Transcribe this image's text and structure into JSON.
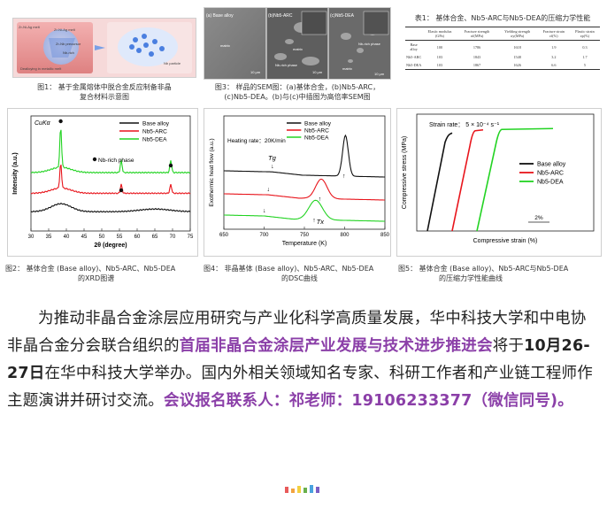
{
  "fig1": {
    "caption_line1": "图1： 基于金属熔体中脱合金反应制备非晶",
    "caption_line2": "复合材料示意图",
    "left_labels": [
      "Zr-Ni-Ag melt",
      "Zr-Ni-Ag melt",
      "Zr-Nb precursor",
      "Nb-rich",
      "Dealloying in metallic melt"
    ],
    "right_labels": [
      "Nb particle"
    ]
  },
  "fig3": {
    "caption_line1": "图3： 样品的SEM图：(a)基体合金，(b)Nb5-ARC，",
    "caption_line2": "(c)Nb5-DEA。(b)与(c)中插图为高倍率SEM图",
    "panels": [
      {
        "label": "(a) Base alloy",
        "texts": [
          "matrix"
        ],
        "scale": "10 μm"
      },
      {
        "label": "(b)Nb5-ARC",
        "texts": [
          "matrix",
          "Nb-rich phase"
        ],
        "scale": "10 μm"
      },
      {
        "label": "(c)Nb5-DEA",
        "texts": [
          "matrix",
          "Nb-rich phase"
        ],
        "scale": "10 μm"
      }
    ]
  },
  "table": {
    "title": "表1： 基体合金、Nb5-ARC与Nb5-DEA的压缩力学性能",
    "headers": [
      "",
      "Elastic modulus (GPa)",
      "Fracture strength σf(MPa)",
      "Yielding strength σy(MPa)",
      "Fracture strain εf(%)",
      "Plastic strain εp(%)"
    ],
    "rows": [
      [
        "Base alloy",
        "100",
        "1786",
        "1618",
        "1.9",
        "0.3"
      ],
      [
        "Nb5-ARC",
        "103",
        "1843",
        "1548",
        "3.2",
        "1.7"
      ],
      [
        "Nb5-DEA",
        "103",
        "1867",
        "1626",
        "6.6",
        "5"
      ]
    ]
  },
  "fig2": {
    "caption_line1": "图2： 基体合金 (Base alloy)、Nb5-ARC、Nb5-DEA",
    "caption_line2": "的XRD图谱",
    "chart_data": {
      "type": "line",
      "title": "",
      "annotation": "CuKα",
      "xlabel": "2θ (degree)",
      "ylabel": "Intensity (a.u.)",
      "xlim": [
        30,
        75
      ],
      "xticks": [
        30,
        35,
        40,
        45,
        50,
        55,
        60,
        65,
        70,
        75
      ],
      "legend_position": "top-right",
      "series": [
        {
          "name": "Base alloy",
          "color": "#111111",
          "offset": 0.06,
          "peaks": []
        },
        {
          "name": "Nb5-ARC",
          "color": "#e8141b",
          "offset": 0.22,
          "peaks": [
            38.4,
            55.5,
            69.5
          ]
        },
        {
          "name": "Nb5-DEA",
          "color": "#22d322",
          "offset": 0.4,
          "peaks": [
            38.4,
            55.5,
            69.5
          ]
        }
      ],
      "marker_label": "Nb-rich phase",
      "marker_x": [
        38.4,
        55.5,
        69.5
      ]
    }
  },
  "fig4": {
    "caption_line1": "图4： 非晶基体 (Base alloy)、Nb5-ARC、Nb5-DEA",
    "caption_line2": "的DSC曲线",
    "chart_data": {
      "type": "line",
      "title": "",
      "xlabel": "Temperature (K)",
      "ylabel": "Exothermic heat flow (a.u.)",
      "xlim": [
        650,
        850
      ],
      "xticks": [
        650,
        700,
        750,
        800,
        850
      ],
      "annotation": "Heating rate：20K/min",
      "tg_label": "Tg",
      "tx_label": "Tx",
      "legend_position": "top-right",
      "series": [
        {
          "name": "Base alloy",
          "color": "#111111",
          "tg": 710,
          "tx": 795
        },
        {
          "name": "Nb5-ARC",
          "color": "#e8141b",
          "tg": 705,
          "tx": 765
        },
        {
          "name": "Nb5-DEA",
          "color": "#22d322",
          "tg": 700,
          "tx": 758
        }
      ]
    }
  },
  "fig5": {
    "caption_line1": "图5： 基体合金 (Base alloy)、Nb5-ARC与Nb5-DEA",
    "caption_line2": "的压缩力学性能曲线",
    "chart_data": {
      "type": "line",
      "title": "",
      "annotation": "Strain rate： 5 × 10⁻⁴ s⁻¹",
      "xlabel": "Compressive strain (%)",
      "ylabel": "Compressive stress (MPa)",
      "scale_bar": "2%",
      "legend_position": "right",
      "series": [
        {
          "name": "Base alloy",
          "color": "#111111",
          "yield": 1618,
          "fracture": 1786
        },
        {
          "name": "Nb5-ARC",
          "color": "#e8141b",
          "yield": 1548,
          "fracture": 1843
        },
        {
          "name": "Nb5-DEA",
          "color": "#22d322",
          "yield": 1626,
          "fracture": 1867
        }
      ]
    }
  },
  "paragraph": {
    "p1": "为推动非晶合金涂层应用研究与产业化科学高质量发展，华中科技大学和中电协非晶合金分会联合组织的",
    "highlight1": "首届非晶合金涂层产业发展与技术进步推进会",
    "p2": "将于",
    "date": "10月26-27日",
    "p3": "在华中科技大学举办。国内外相关领域知名专家、科研工作者和产业链工程师作主题演讲并研讨交流。",
    "contact": "会议报名联系人：祁老师：19106233377（微信同号)。"
  },
  "colors": {
    "highlight": "#8b3fa8",
    "red": "#e8141b",
    "green": "#22d322",
    "black": "#111111"
  },
  "footer_dots": [
    "#e85a5a",
    "#f2a340",
    "#f2d040",
    "#6ab04c",
    "#4aa3df",
    "#7b5fc4"
  ]
}
